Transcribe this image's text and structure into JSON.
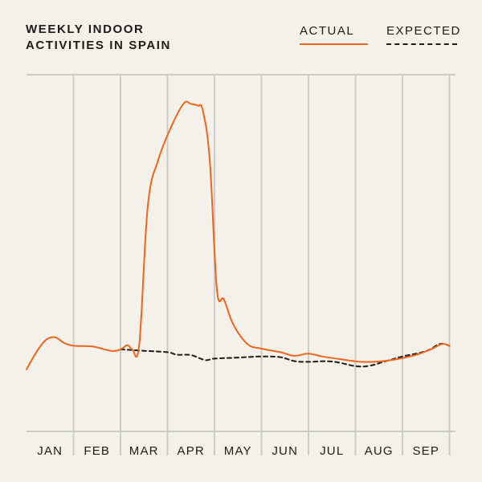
{
  "chart_data": {
    "type": "line",
    "title_lines": [
      "WEEKLY INDOOR",
      "ACTIVITIES IN SPAIN"
    ],
    "xlabel": "",
    "ylabel": "",
    "x_ticks": [
      "JAN",
      "FEB",
      "MAR",
      "APR",
      "MAY",
      "JUN",
      "JUL",
      "AUG",
      "SEP"
    ],
    "x_range": [
      0,
      9.2
    ],
    "ylim": [
      0,
      10
    ],
    "grid": {
      "vertical": true,
      "horizontal": false
    },
    "legend_position": "top-right",
    "series": [
      {
        "name": "ACTUAL",
        "color": "#f26419",
        "style": "solid",
        "points": [
          [
            0.0,
            1.74
          ],
          [
            0.2,
            2.2
          ],
          [
            0.4,
            2.55
          ],
          [
            0.6,
            2.64
          ],
          [
            0.8,
            2.48
          ],
          [
            1.0,
            2.4
          ],
          [
            1.4,
            2.38
          ],
          [
            1.8,
            2.26
          ],
          [
            2.0,
            2.3
          ],
          [
            2.15,
            2.42
          ],
          [
            2.25,
            2.3
          ],
          [
            2.4,
            2.45
          ],
          [
            2.58,
            6.3
          ],
          [
            2.8,
            7.6
          ],
          [
            3.1,
            8.6
          ],
          [
            3.35,
            9.2
          ],
          [
            3.5,
            9.18
          ],
          [
            3.65,
            9.13
          ],
          [
            3.75,
            9.0
          ],
          [
            3.9,
            7.6
          ],
          [
            4.05,
            4.0
          ],
          [
            4.2,
            3.7
          ],
          [
            4.4,
            3.0
          ],
          [
            4.7,
            2.45
          ],
          [
            5.0,
            2.32
          ],
          [
            5.4,
            2.22
          ],
          [
            5.7,
            2.12
          ],
          [
            6.0,
            2.18
          ],
          [
            6.3,
            2.1
          ],
          [
            6.7,
            2.02
          ],
          [
            7.1,
            1.95
          ],
          [
            7.5,
            1.96
          ],
          [
            7.9,
            2.03
          ],
          [
            8.3,
            2.15
          ],
          [
            8.6,
            2.3
          ],
          [
            8.85,
            2.45
          ],
          [
            9.0,
            2.4
          ]
        ]
      },
      {
        "name": "EXPECTED",
        "color": "#1c1c1c",
        "style": "dashed",
        "points": [
          [
            2.0,
            2.3
          ],
          [
            2.5,
            2.26
          ],
          [
            3.0,
            2.22
          ],
          [
            3.2,
            2.15
          ],
          [
            3.5,
            2.14
          ],
          [
            3.8,
            2.0
          ],
          [
            4.0,
            2.04
          ],
          [
            4.5,
            2.07
          ],
          [
            5.0,
            2.1
          ],
          [
            5.4,
            2.08
          ],
          [
            5.7,
            1.97
          ],
          [
            6.0,
            1.95
          ],
          [
            6.5,
            1.96
          ],
          [
            7.0,
            1.83
          ],
          [
            7.3,
            1.84
          ],
          [
            7.6,
            1.95
          ],
          [
            8.0,
            2.1
          ],
          [
            8.5,
            2.25
          ],
          [
            8.8,
            2.45
          ],
          [
            9.0,
            2.4
          ]
        ]
      }
    ]
  }
}
